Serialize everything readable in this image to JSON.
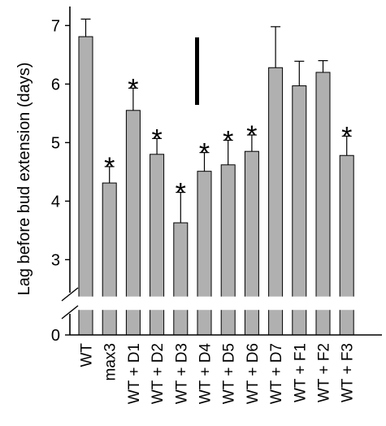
{
  "chart_data": {
    "type": "bar",
    "ylabel": "Lag before bud extension (days)",
    "categories": [
      "WT",
      "max3",
      "WT + D1",
      "WT + D2",
      "WT + D3",
      "WT + D4",
      "WT + D5",
      "WT + D6",
      "WT + D7",
      "WT + F1",
      "WT + F2",
      "WT + F3"
    ],
    "values": [
      6.81,
      4.31,
      5.55,
      4.8,
      3.63,
      4.51,
      4.62,
      4.85,
      6.28,
      5.97,
      6.2,
      4.78
    ],
    "error_upper": [
      0.3,
      0.28,
      0.38,
      0.27,
      0.52,
      0.32,
      0.42,
      0.28,
      0.7,
      0.42,
      0.2,
      0.33
    ],
    "significant": [
      false,
      true,
      true,
      true,
      true,
      true,
      true,
      true,
      false,
      false,
      false,
      true
    ],
    "significance_marker": "*",
    "yticks": [
      "0",
      "3",
      "4",
      "5",
      "6",
      "7"
    ],
    "y_axis_break": true,
    "ylim_upper": [
      2.7,
      7.2
    ],
    "ylim_lower": [
      0,
      0.35
    ],
    "bar_color": "#b0b0b0",
    "grid": false,
    "legend": "none"
  }
}
